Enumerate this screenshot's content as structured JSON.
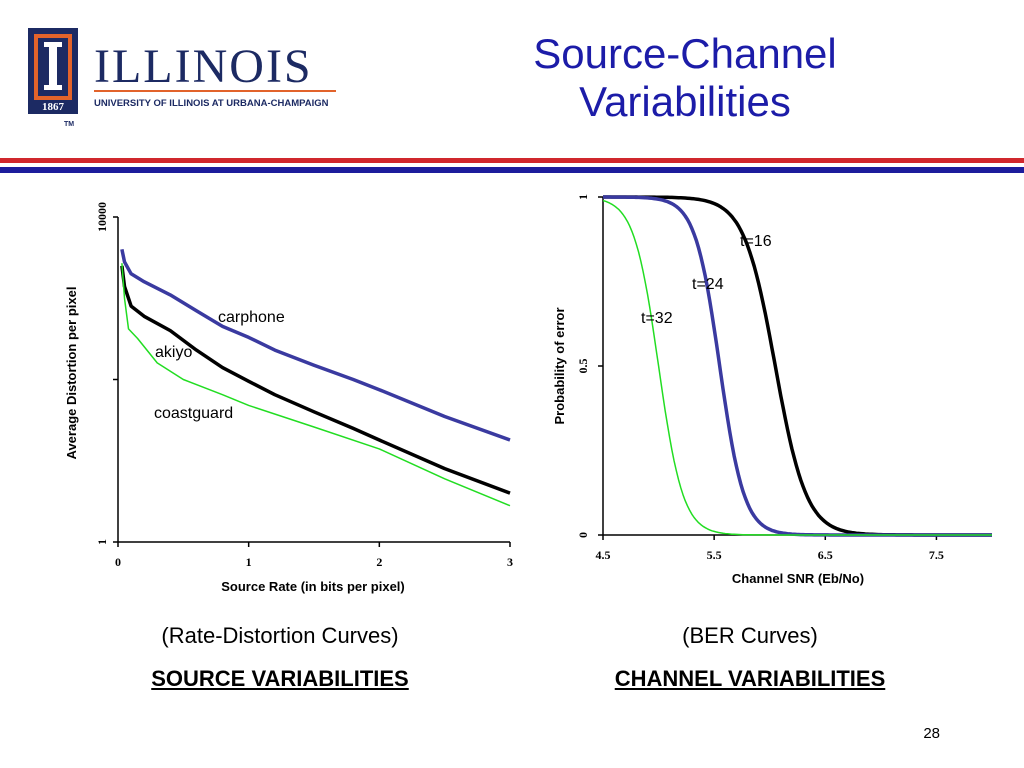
{
  "slide": {
    "title_line1": "Source-Channel",
    "title_line2": "Variabilities",
    "page_number": "28"
  },
  "logo": {
    "wordmark": "ILLINOIS",
    "subtitle": "UNIVERSITY OF ILLINOIS AT URBANA-CHAMPAIGN",
    "year": "1867",
    "trademark": "TM",
    "colors": {
      "navy": "#1c2a63",
      "orange": "#e2632b"
    }
  },
  "captions": {
    "left_line1": "(Rate-Distortion Curves)",
    "left_line2": "SOURCE VARIABILITIES",
    "right_line1": "(BER Curves)",
    "right_line2": "CHANNEL VARIABILITIES"
  },
  "colors": {
    "title": "#1c1ca8",
    "rule_red": "#d0272d",
    "rule_blue": "#1c1c9c"
  },
  "chart_data": [
    {
      "type": "line",
      "xlabel": "Source Rate (in bits per pixel)",
      "ylabel": "Average Distortion per pixel",
      "xlim": [
        0,
        3
      ],
      "xticks": [
        "0",
        "1",
        "2",
        "3"
      ],
      "yscale": "log",
      "ylim": [
        1,
        10000
      ],
      "yticks": [
        "1",
        "10000"
      ],
      "series": [
        {
          "name": "carphone",
          "color": "#3a3aa0",
          "x": [
            0.03,
            0.05,
            0.1,
            0.2,
            0.4,
            0.6,
            0.8,
            1.0,
            1.2,
            1.5,
            1.8,
            2.0,
            2.5,
            3.0
          ],
          "y": [
            4000,
            2800,
            2000,
            1600,
            1100,
            700,
            450,
            330,
            230,
            150,
            100,
            75,
            35,
            18
          ]
        },
        {
          "name": "akiyo",
          "color": "#000000",
          "x": [
            0.03,
            0.05,
            0.1,
            0.2,
            0.4,
            0.6,
            0.8,
            1.0,
            1.2,
            1.5,
            1.8,
            2.0,
            2.5,
            3.0
          ],
          "y": [
            2500,
            1400,
            800,
            600,
            400,
            230,
            140,
            95,
            65,
            40,
            25,
            18,
            8,
            4
          ]
        },
        {
          "name": "coastguard",
          "color": "#22dd22",
          "x": [
            0.03,
            0.05,
            0.08,
            0.15,
            0.3,
            0.5,
            0.8,
            1.0,
            1.5,
            2.0,
            2.5,
            3.0
          ],
          "y": [
            2700,
            1000,
            420,
            320,
            160,
            100,
            65,
            48,
            26,
            14,
            6,
            2.8
          ]
        }
      ],
      "annotations": [
        {
          "text": "carphone",
          "series": "carphone"
        },
        {
          "text": "akiyo",
          "series": "akiyo"
        },
        {
          "text": "coastguard",
          "series": "coastguard"
        }
      ]
    },
    {
      "type": "line",
      "xlabel": "Channel SNR (Eb/No)",
      "ylabel": "Probability of error",
      "xlim": [
        4.5,
        8.0
      ],
      "xticks": [
        "4.5",
        "5.5",
        "6.5",
        "7.5"
      ],
      "ylim": [
        0,
        1
      ],
      "yticks": [
        "0",
        "0.5",
        "1"
      ],
      "series": [
        {
          "name": "t=16",
          "color": "#000000",
          "center": 6.05,
          "scale": 0.14
        },
        {
          "name": "t=24",
          "color": "#3a3aa0",
          "center": 5.55,
          "scale": 0.11
        },
        {
          "name": "t=32",
          "color": "#22dd22",
          "center": 5.0,
          "scale": 0.11
        }
      ],
      "annotations": [
        {
          "text": "t=16",
          "series": "t=16"
        },
        {
          "text": "t=24",
          "series": "t=24"
        },
        {
          "text": "t=32",
          "series": "t=32"
        }
      ]
    }
  ]
}
